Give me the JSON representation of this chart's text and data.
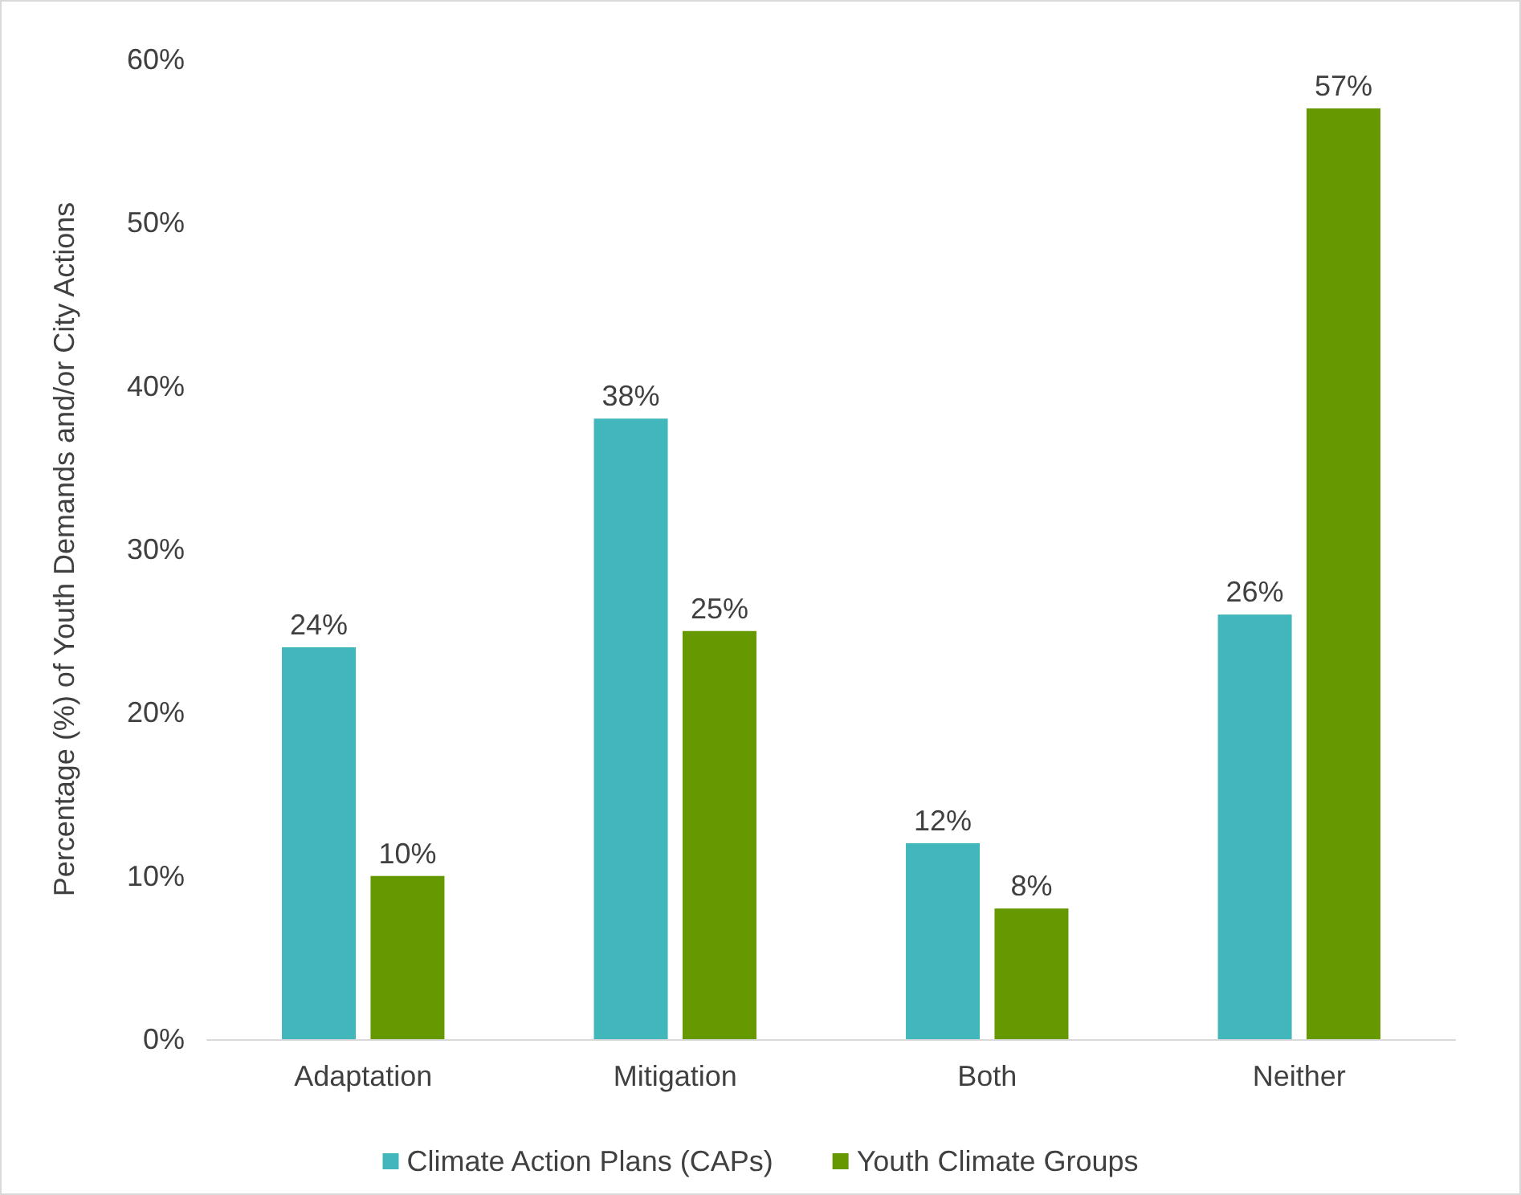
{
  "chart_data": {
    "type": "bar",
    "ylabel": "Percentage (%) of Youth Demands and/or City Actions",
    "categories": [
      "Adaptation",
      "Mitigation",
      "Both",
      "Neither"
    ],
    "series": [
      {
        "name": "Climate Action Plans (CAPs)",
        "color": "#41b6bb",
        "values": [
          24,
          38,
          12,
          26
        ],
        "value_labels": [
          "24%",
          "38%",
          "12%",
          "26%"
        ]
      },
      {
        "name": "Youth Climate Groups",
        "color": "#669900",
        "values": [
          10,
          25,
          8,
          57
        ],
        "value_labels": [
          "10%",
          "25%",
          "8%",
          "57%"
        ]
      }
    ],
    "ylim": [
      0,
      60
    ],
    "yticks": [
      {
        "value": 0,
        "label": "0%"
      },
      {
        "value": 10,
        "label": "10%"
      },
      {
        "value": 20,
        "label": "20%"
      },
      {
        "value": 30,
        "label": "30%"
      },
      {
        "value": 40,
        "label": "40%"
      },
      {
        "value": 50,
        "label": "50%"
      },
      {
        "value": 60,
        "label": "60%"
      }
    ],
    "grid": false,
    "legend": "bottom"
  }
}
